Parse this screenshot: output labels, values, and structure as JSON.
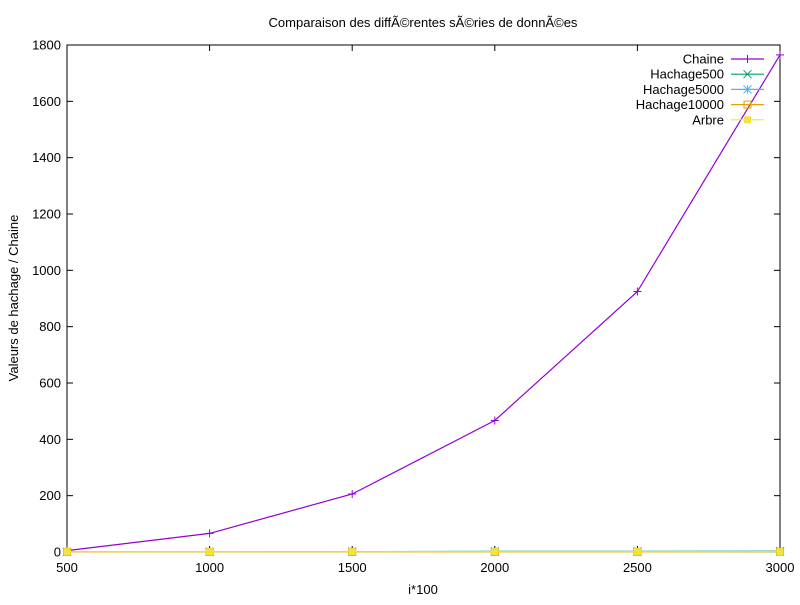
{
  "chart_data": {
    "type": "line",
    "title": "Comparaison des diffÃ©rentes sÃ©ries de donnÃ©es",
    "xlabel": "i*100",
    "ylabel": "Valeurs de hachage / Chaine",
    "xlim": [
      500,
      3000
    ],
    "ylim": [
      0,
      1800
    ],
    "x_ticks": [
      500,
      1000,
      1500,
      2000,
      2500,
      3000
    ],
    "y_ticks": [
      0,
      200,
      400,
      600,
      800,
      1000,
      1200,
      1400,
      1600,
      1800
    ],
    "grid": false,
    "legend_position": "top-right",
    "x": [
      500,
      1000,
      1500,
      2000,
      2500,
      3000
    ],
    "series": [
      {
        "name": "Chaine",
        "marker": "plus",
        "color": "#9400d3",
        "values": [
          5,
          66,
          206,
          467,
          925,
          1765
        ]
      },
      {
        "name": "Hachage500",
        "marker": "cross",
        "color": "#009e73",
        "values": [
          0.5,
          1,
          1.5,
          2,
          2.5,
          3
        ]
      },
      {
        "name": "Hachage5000",
        "marker": "star",
        "color": "#56b4e9",
        "values": [
          0.5,
          0.5,
          0.5,
          0.5,
          1,
          1
        ]
      },
      {
        "name": "Hachage10000",
        "marker": "square-open",
        "color": "#e69f00",
        "values": [
          0.5,
          0.5,
          0.5,
          0.5,
          0.5,
          1
        ]
      },
      {
        "name": "Arbre",
        "marker": "square-filled",
        "color": "#f0e442",
        "values": [
          1,
          1,
          1,
          1,
          1,
          1
        ]
      }
    ]
  }
}
